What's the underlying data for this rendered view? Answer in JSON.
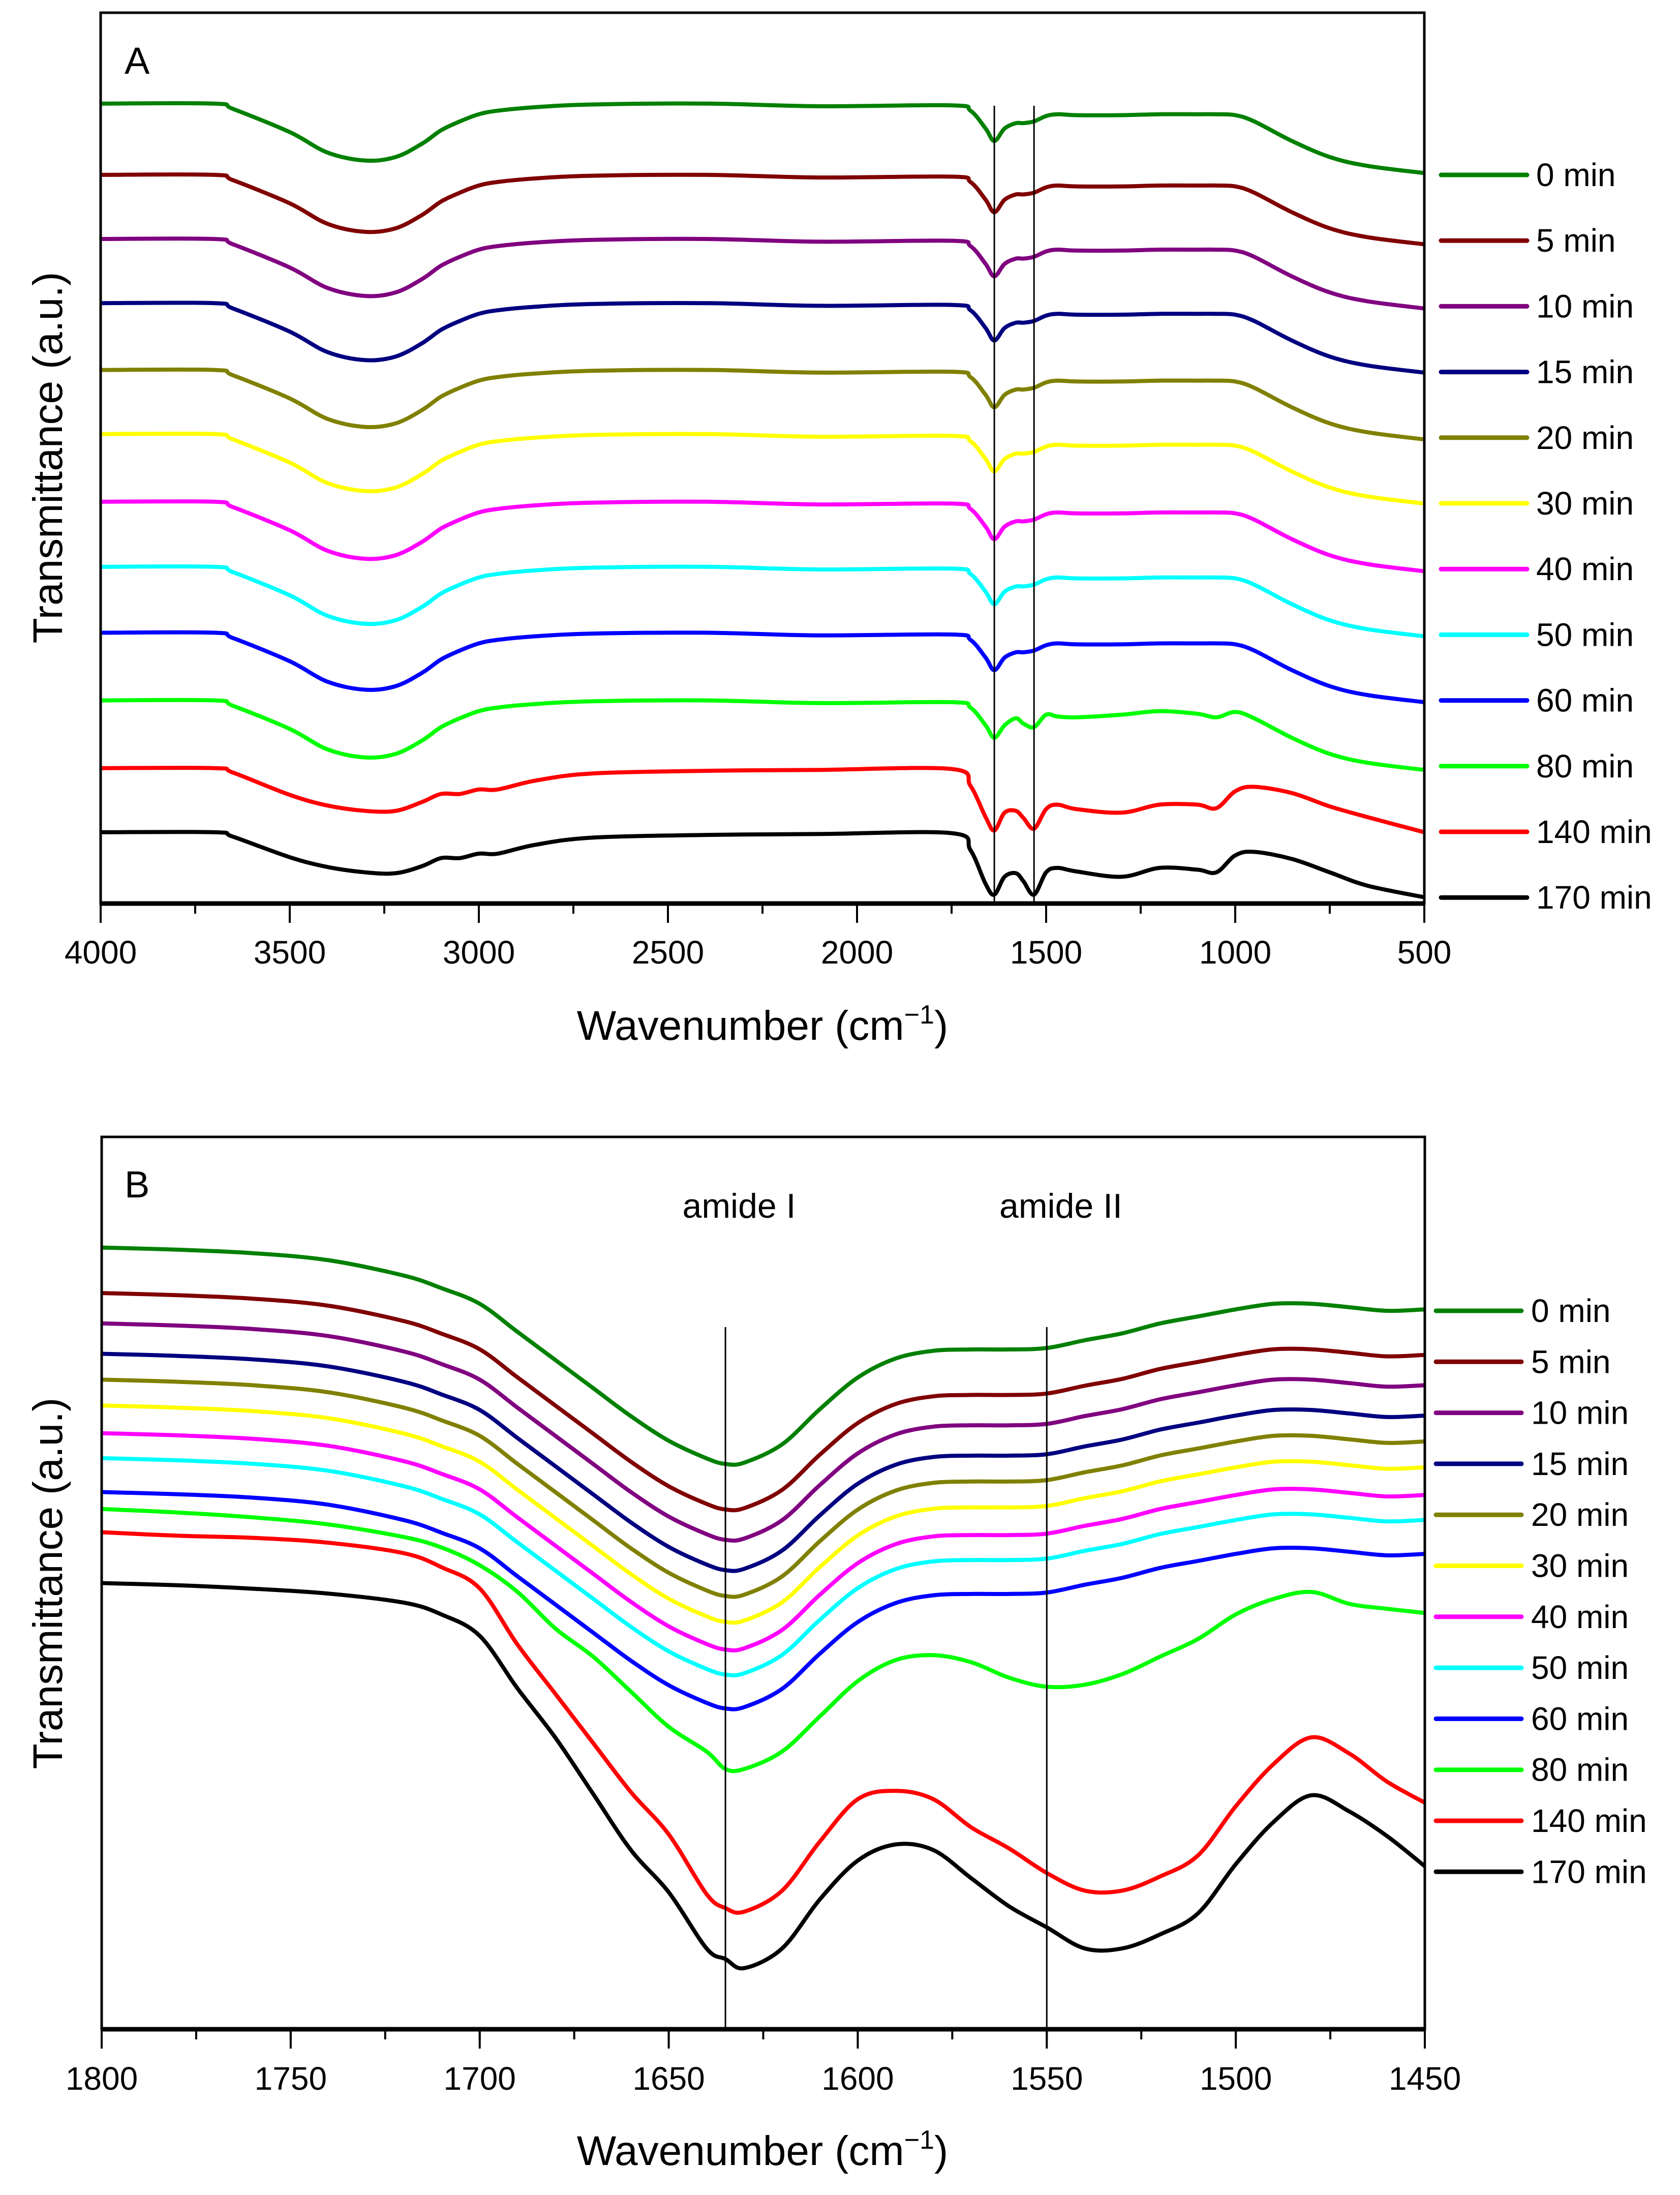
{
  "chart_data": [
    {
      "type": "line",
      "panel_label": "A",
      "xlabel": "Wavenumber (cm",
      "xlabel_sup": "−1",
      "xlabel_end": ")",
      "ylabel": "Transmittance (a.u.)",
      "xlim": [
        4000,
        500
      ],
      "ylim": [
        0,
        100
      ],
      "xticks": [
        4000,
        3500,
        3000,
        2500,
        2000,
        1500,
        1000,
        500
      ],
      "xtick_labels": [
        "4000",
        "3500",
        "3000",
        "2500",
        "2000",
        "1500",
        "1000",
        "500"
      ],
      "minor_tick_step": 250,
      "grid": false,
      "legend_position": "right",
      "reference_lines": [
        1637,
        1532
      ],
      "x": [
        4000,
        3700,
        3650,
        3500,
        3400,
        3300,
        3220,
        3150,
        3100,
        3050,
        3000,
        2950,
        2850,
        2700,
        2400,
        2100,
        1750,
        1700,
        1660,
        1637,
        1610,
        1580,
        1560,
        1532,
        1500,
        1470,
        1420,
        1300,
        1200,
        1100,
        1050,
        1000,
        950,
        850,
        750,
        650,
        500
      ],
      "profiles": {
        "native": [
          0,
          0,
          -0.6,
          -3.2,
          -5.5,
          -6.4,
          -6.0,
          -4.5,
          -3.0,
          -2.0,
          -1.2,
          -0.8,
          -0.4,
          -0.1,
          0,
          -0.3,
          -0.2,
          -0.8,
          -2.8,
          -4.2,
          -2.8,
          -2.2,
          -2.2,
          -2.0,
          -1.4,
          -1.2,
          -1.3,
          -1.3,
          -1.2,
          -1.2,
          -1.2,
          -1.3,
          -2.0,
          -4.2,
          -6.0,
          -7.0,
          -7.8
        ],
        "min80": [
          0,
          0,
          -0.6,
          -3.2,
          -5.5,
          -6.4,
          -6.0,
          -4.5,
          -3.0,
          -2.0,
          -1.2,
          -0.8,
          -0.4,
          -0.1,
          0,
          -0.3,
          -0.2,
          -0.8,
          -2.8,
          -4.2,
          -2.8,
          -2.0,
          -2.6,
          -3.0,
          -1.6,
          -1.8,
          -1.9,
          -1.6,
          -1.2,
          -1.5,
          -1.9,
          -1.3,
          -2.0,
          -4.2,
          -6.0,
          -7.0,
          -7.8
        ],
        "min140": [
          0,
          0,
          -0.5,
          -3.0,
          -4.2,
          -4.8,
          -4.8,
          -3.8,
          -2.9,
          -2.9,
          -2.4,
          -2.4,
          -1.4,
          -0.6,
          -0.3,
          -0.2,
          -0.1,
          -2.0,
          -5.5,
          -7.0,
          -5.0,
          -4.8,
          -5.6,
          -6.8,
          -4.6,
          -4.1,
          -4.6,
          -5.0,
          -4.1,
          -4.1,
          -4.5,
          -2.6,
          -2.1,
          -2.8,
          -4.3,
          -5.5,
          -7.2
        ],
        "min170": [
          0,
          0,
          -0.5,
          -2.8,
          -3.9,
          -4.5,
          -4.6,
          -3.8,
          -2.9,
          -2.9,
          -2.4,
          -2.4,
          -1.4,
          -0.6,
          -0.3,
          -0.2,
          -0.1,
          -2.0,
          -5.8,
          -7.0,
          -5.0,
          -4.6,
          -5.5,
          -7.0,
          -4.5,
          -4.0,
          -4.4,
          -5.0,
          -4.0,
          -4.2,
          -4.5,
          -2.6,
          -2.2,
          -3.0,
          -4.5,
          -6.0,
          -7.3
        ]
      },
      "series": [
        {
          "name": "0 min",
          "color": "#008000",
          "offset": 89.8,
          "profile": "native"
        },
        {
          "name": "5 min",
          "color": "#800000",
          "offset": 81.8,
          "profile": "native"
        },
        {
          "name": "10 min",
          "color": "#800080",
          "offset": 74.6,
          "profile": "native"
        },
        {
          "name": "15 min",
          "color": "#000080",
          "offset": 67.4,
          "profile": "native"
        },
        {
          "name": "20 min",
          "color": "#808000",
          "offset": 59.9,
          "profile": "native"
        },
        {
          "name": "30 min",
          "color": "#ffff00",
          "offset": 52.7,
          "profile": "native"
        },
        {
          "name": "40 min",
          "color": "#ff00ff",
          "offset": 45.1,
          "profile": "native"
        },
        {
          "name": "50 min",
          "color": "#00ffff",
          "offset": 37.8,
          "profile": "native"
        },
        {
          "name": "60 min",
          "color": "#0000ff",
          "offset": 30.4,
          "profile": "native"
        },
        {
          "name": "80 min",
          "color": "#00ff00",
          "offset": 22.8,
          "profile": "min80"
        },
        {
          "name": "140 min",
          "color": "#ff0000",
          "offset": 15.2,
          "profile": "min140"
        },
        {
          "name": "170 min",
          "color": "#000000",
          "offset": 8.0,
          "profile": "min170"
        }
      ]
    },
    {
      "type": "line",
      "panel_label": "B",
      "xlabel": "Wavenumber (cm",
      "xlabel_sup": "−1",
      "xlabel_end": ")",
      "ylabel": "Transmittance (a.u.)",
      "xlim": [
        1800,
        1450
      ],
      "ylim": [
        0,
        100
      ],
      "xticks": [
        1800,
        1750,
        1700,
        1650,
        1600,
        1550,
        1500,
        1450
      ],
      "xtick_labels": [
        "1800",
        "1750",
        "1700",
        "1650",
        "1600",
        "1550",
        "1500",
        "1450"
      ],
      "minor_tick_step": 25,
      "grid": false,
      "legend_position": "right",
      "reference_lines": [
        1635,
        1550
      ],
      "annotations": [
        {
          "text": "amide I",
          "x": 1635
        },
        {
          "text": "amide II",
          "x": 1550
        }
      ],
      "x": [
        1800,
        1780,
        1760,
        1740,
        1720,
        1710,
        1700,
        1690,
        1680,
        1670,
        1660,
        1650,
        1640,
        1635,
        1630,
        1620,
        1610,
        1600,
        1590,
        1580,
        1570,
        1560,
        1550,
        1540,
        1530,
        1520,
        1510,
        1500,
        1490,
        1480,
        1470,
        1460,
        1450
      ],
      "profiles": {
        "native": [
          0,
          -0.24,
          -0.63,
          -1.42,
          -3.15,
          -4.57,
          -6.3,
          -9.45,
          -12.6,
          -15.75,
          -18.9,
          -21.65,
          -23.62,
          -24.25,
          -24.1,
          -22.05,
          -18.1,
          -14.57,
          -12.44,
          -11.57,
          -11.42,
          -11.42,
          -11.26,
          -10.39,
          -9.61,
          -8.5,
          -7.72,
          -6.93,
          -6.3,
          -6.3,
          -6.69,
          -7.09,
          -6.93
        ],
        "min80": [
          0,
          -0.39,
          -0.94,
          -1.73,
          -3.15,
          -4.33,
          -6.3,
          -9.29,
          -13.39,
          -16.54,
          -20.47,
          -24.41,
          -27.17,
          -29.13,
          -29.13,
          -27.17,
          -23.23,
          -19.29,
          -16.93,
          -16.38,
          -17.17,
          -18.9,
          -19.92,
          -19.69,
          -18.5,
          -16.54,
          -14.57,
          -11.81,
          -10.08,
          -9.29,
          -10.63,
          -11.18,
          -11.65
        ],
        "min140": [
          0,
          -0.39,
          -0.63,
          -1.18,
          -2.36,
          -3.94,
          -6.3,
          -12.6,
          -18.11,
          -23.62,
          -29.13,
          -33.86,
          -40.55,
          -42.13,
          -42.52,
          -40.16,
          -34.65,
          -29.92,
          -28.98,
          -29.92,
          -33.07,
          -35.43,
          -38.19,
          -40.16,
          -40.16,
          -38.58,
          -36.22,
          -30.71,
          -25.98,
          -22.99,
          -24.8,
          -27.95,
          -30.31
        ],
        "min170": [
          0,
          -0.24,
          -0.63,
          -1.18,
          -2.2,
          -3.54,
          -5.91,
          -11.81,
          -17.32,
          -23.62,
          -29.92,
          -34.65,
          -40.94,
          -42.13,
          -43.15,
          -40.94,
          -35.43,
          -31.1,
          -29.29,
          -29.92,
          -33.07,
          -36.22,
          -38.58,
          -40.94,
          -40.94,
          -39.37,
          -37.01,
          -31.5,
          -26.77,
          -23.78,
          -25.59,
          -28.35,
          -31.73
        ]
      },
      "series": [
        {
          "name": "0 min",
          "color": "#008000",
          "offset": 87.6,
          "profile": "native"
        },
        {
          "name": "5 min",
          "color": "#800000",
          "offset": 82.5,
          "profile": "native"
        },
        {
          "name": "10 min",
          "color": "#800080",
          "offset": 79.1,
          "profile": "native"
        },
        {
          "name": "15 min",
          "color": "#000080",
          "offset": 75.7,
          "profile": "native"
        },
        {
          "name": "20 min",
          "color": "#808000",
          "offset": 72.8,
          "profile": "native"
        },
        {
          "name": "30 min",
          "color": "#ffff00",
          "offset": 69.9,
          "profile": "native"
        },
        {
          "name": "40 min",
          "color": "#ff00ff",
          "offset": 66.8,
          "profile": "native"
        },
        {
          "name": "50 min",
          "color": "#00ffff",
          "offset": 64.0,
          "profile": "native"
        },
        {
          "name": "60 min",
          "color": "#0000ff",
          "offset": 60.2,
          "profile": "native"
        },
        {
          "name": "80 min",
          "color": "#00ff00",
          "offset": 58.3,
          "profile": "min80"
        },
        {
          "name": "140 min",
          "color": "#ff0000",
          "offset": 55.7,
          "profile": "min140"
        },
        {
          "name": "170 min",
          "color": "#000000",
          "offset": 50.0,
          "profile": "min170"
        }
      ]
    }
  ]
}
